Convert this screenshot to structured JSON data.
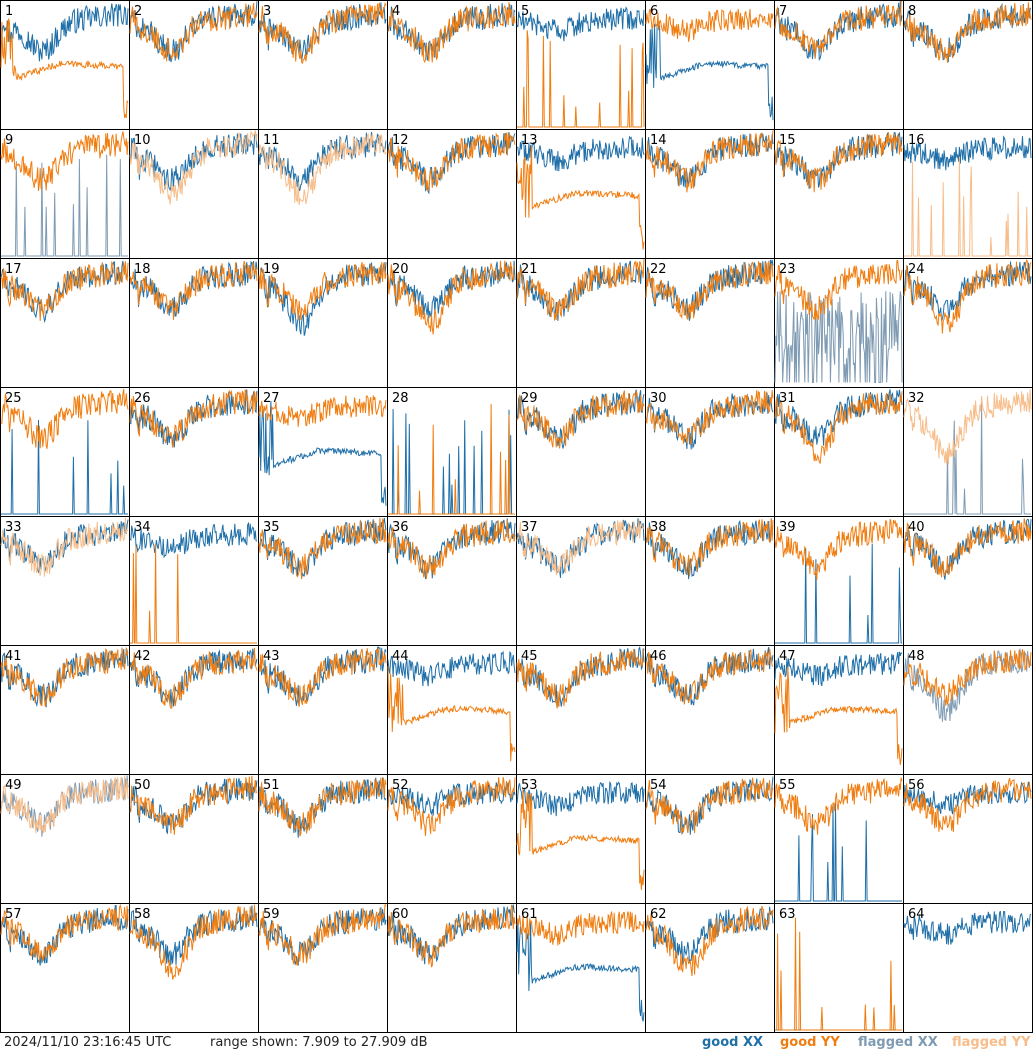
{
  "timestamp": "2024/11/10 23:16:45 UTC",
  "range_text": "range shown: 7.909 to 27.909 dB",
  "legend": {
    "good_xx": {
      "word": "good",
      "pol": "XX",
      "color": "#1f6fa8"
    },
    "good_yy": {
      "word": "good",
      "pol": "YY",
      "color": "#f07d10"
    },
    "flagged_xx": {
      "word": "flagged",
      "pol": "XX",
      "color": "#7f9bb3"
    },
    "flagged_yy": {
      "word": "flagged",
      "pol": "YY",
      "color": "#f7bd8a"
    }
  },
  "chart_data": {
    "type": "line",
    "ylim": [
      7.909,
      27.909
    ],
    "grid": {
      "rows": 8,
      "cols": 8
    },
    "series_names": [
      "good XX",
      "good YY",
      "flagged XX",
      "flagged YY"
    ],
    "panels": [
      {
        "label": "1",
        "xx": "good",
        "yy": "good",
        "xx_shape": "normal",
        "yy_shape": "smooth_low"
      },
      {
        "label": "2",
        "xx": "good",
        "yy": "good",
        "xx_shape": "normal",
        "yy_shape": "normal"
      },
      {
        "label": "3",
        "xx": "good",
        "yy": "good",
        "xx_shape": "normal",
        "yy_shape": "normal"
      },
      {
        "label": "4",
        "xx": "good",
        "yy": "good",
        "xx_shape": "normal",
        "yy_shape": "normal"
      },
      {
        "label": "5",
        "xx": "good",
        "yy": "good",
        "xx_shape": "high",
        "yy_shape": "spiky_zero"
      },
      {
        "label": "6",
        "xx": "good",
        "yy": "good",
        "xx_shape": "smooth_low",
        "yy_shape": "high"
      },
      {
        "label": "7",
        "xx": "good",
        "yy": "good",
        "xx_shape": "normal",
        "yy_shape": "normal"
      },
      {
        "label": "8",
        "xx": "good",
        "yy": "good",
        "xx_shape": "normal",
        "yy_shape": "normal"
      },
      {
        "label": "9",
        "xx": "flagged",
        "yy": "good",
        "xx_shape": "spiky_zero",
        "yy_shape": "normal"
      },
      {
        "label": "10",
        "xx": "good",
        "yy": "flagged",
        "xx_shape": "normal",
        "yy_shape": "deep"
      },
      {
        "label": "11",
        "xx": "good",
        "yy": "flagged",
        "xx_shape": "normal",
        "yy_shape": "deep"
      },
      {
        "label": "12",
        "xx": "good",
        "yy": "good",
        "xx_shape": "normal",
        "yy_shape": "normal"
      },
      {
        "label": "13",
        "xx": "good",
        "yy": "good",
        "xx_shape": "high",
        "yy_shape": "smooth_low"
      },
      {
        "label": "14",
        "xx": "good",
        "yy": "good",
        "xx_shape": "normal",
        "yy_shape": "normal"
      },
      {
        "label": "15",
        "xx": "good",
        "yy": "good",
        "xx_shape": "normal",
        "yy_shape": "normal"
      },
      {
        "label": "16",
        "xx": "good",
        "yy": "flagged",
        "xx_shape": "high",
        "yy_shape": "spiky_zero"
      },
      {
        "label": "17",
        "xx": "good",
        "yy": "good",
        "xx_shape": "normal",
        "yy_shape": "normal"
      },
      {
        "label": "18",
        "xx": "good",
        "yy": "good",
        "xx_shape": "normal",
        "yy_shape": "normal"
      },
      {
        "label": "19",
        "xx": "good",
        "yy": "good",
        "xx_shape": "deep",
        "yy_shape": "normal"
      },
      {
        "label": "20",
        "xx": "good",
        "yy": "good",
        "xx_shape": "normal",
        "yy_shape": "deep"
      },
      {
        "label": "21",
        "xx": "good",
        "yy": "good",
        "xx_shape": "normal",
        "yy_shape": "normal"
      },
      {
        "label": "22",
        "xx": "good",
        "yy": "good",
        "xx_shape": "normal",
        "yy_shape": "normal"
      },
      {
        "label": "23",
        "xx": "flagged",
        "yy": "good",
        "xx_shape": "noisy_low",
        "yy_shape": "normal"
      },
      {
        "label": "24",
        "xx": "good",
        "yy": "good",
        "xx_shape": "normal",
        "yy_shape": "deep"
      },
      {
        "label": "25",
        "xx": "good",
        "yy": "good",
        "xx_shape": "spiky_zero",
        "yy_shape": "normal"
      },
      {
        "label": "26",
        "xx": "good",
        "yy": "good",
        "xx_shape": "normal",
        "yy_shape": "normal"
      },
      {
        "label": "27",
        "xx": "good",
        "yy": "good",
        "xx_shape": "smooth_low",
        "yy_shape": "high"
      },
      {
        "label": "28",
        "xx": "good",
        "yy": "good",
        "xx_shape": "spiky_zero",
        "yy_shape": "spiky_zero"
      },
      {
        "label": "29",
        "xx": "good",
        "yy": "good",
        "xx_shape": "normal",
        "yy_shape": "normal"
      },
      {
        "label": "30",
        "xx": "good",
        "yy": "good",
        "xx_shape": "normal",
        "yy_shape": "normal"
      },
      {
        "label": "31",
        "xx": "good",
        "yy": "good",
        "xx_shape": "normal",
        "yy_shape": "deep"
      },
      {
        "label": "32",
        "xx": "flagged",
        "yy": "flagged",
        "xx_shape": "spiky_zero",
        "yy_shape": "deep"
      },
      {
        "label": "33",
        "xx": "good",
        "yy": "flagged",
        "xx_shape": "normal",
        "yy_shape": "normal"
      },
      {
        "label": "34",
        "xx": "good",
        "yy": "good",
        "xx_shape": "high",
        "yy_shape": "spiky_zero"
      },
      {
        "label": "35",
        "xx": "good",
        "yy": "good",
        "xx_shape": "normal",
        "yy_shape": "normal"
      },
      {
        "label": "36",
        "xx": "good",
        "yy": "good",
        "xx_shape": "normal",
        "yy_shape": "normal"
      },
      {
        "label": "37",
        "xx": "good",
        "yy": "flagged",
        "xx_shape": "normal",
        "yy_shape": "normal"
      },
      {
        "label": "38",
        "xx": "good",
        "yy": "good",
        "xx_shape": "normal",
        "yy_shape": "normal"
      },
      {
        "label": "39",
        "xx": "good",
        "yy": "good",
        "xx_shape": "spiky_zero",
        "yy_shape": "normal"
      },
      {
        "label": "40",
        "xx": "good",
        "yy": "good",
        "xx_shape": "normal",
        "yy_shape": "normal"
      },
      {
        "label": "41",
        "xx": "good",
        "yy": "good",
        "xx_shape": "normal",
        "yy_shape": "normal"
      },
      {
        "label": "42",
        "xx": "good",
        "yy": "good",
        "xx_shape": "normal",
        "yy_shape": "normal"
      },
      {
        "label": "43",
        "xx": "good",
        "yy": "good",
        "xx_shape": "normal",
        "yy_shape": "normal"
      },
      {
        "label": "44",
        "xx": "good",
        "yy": "good",
        "xx_shape": "high",
        "yy_shape": "smooth_low"
      },
      {
        "label": "45",
        "xx": "good",
        "yy": "good",
        "xx_shape": "normal",
        "yy_shape": "normal"
      },
      {
        "label": "46",
        "xx": "good",
        "yy": "good",
        "xx_shape": "normal",
        "yy_shape": "normal"
      },
      {
        "label": "47",
        "xx": "good",
        "yy": "good",
        "xx_shape": "high",
        "yy_shape": "smooth_low"
      },
      {
        "label": "48",
        "xx": "flagged",
        "yy": "good",
        "xx_shape": "deep",
        "yy_shape": "normal"
      },
      {
        "label": "49",
        "xx": "flagged",
        "yy": "flagged",
        "xx_shape": "normal",
        "yy_shape": "normal"
      },
      {
        "label": "50",
        "xx": "good",
        "yy": "good",
        "xx_shape": "normal",
        "yy_shape": "normal"
      },
      {
        "label": "51",
        "xx": "good",
        "yy": "good",
        "xx_shape": "normal",
        "yy_shape": "normal"
      },
      {
        "label": "52",
        "xx": "good",
        "yy": "good",
        "xx_shape": "high",
        "yy_shape": "normal"
      },
      {
        "label": "53",
        "xx": "good",
        "yy": "good",
        "xx_shape": "high",
        "yy_shape": "smooth_low"
      },
      {
        "label": "54",
        "xx": "good",
        "yy": "good",
        "xx_shape": "normal",
        "yy_shape": "normal"
      },
      {
        "label": "55",
        "xx": "good",
        "yy": "good",
        "xx_shape": "spiky_zero",
        "yy_shape": "normal"
      },
      {
        "label": "56",
        "xx": "good",
        "yy": "good",
        "xx_shape": "high",
        "yy_shape": "normal"
      },
      {
        "label": "57",
        "xx": "good",
        "yy": "good",
        "xx_shape": "normal",
        "yy_shape": "normal"
      },
      {
        "label": "58",
        "xx": "good",
        "yy": "good",
        "xx_shape": "normal",
        "yy_shape": "deep"
      },
      {
        "label": "59",
        "xx": "good",
        "yy": "good",
        "xx_shape": "normal",
        "yy_shape": "normal"
      },
      {
        "label": "60",
        "xx": "good",
        "yy": "good",
        "xx_shape": "normal",
        "yy_shape": "normal"
      },
      {
        "label": "61",
        "xx": "good",
        "yy": "good",
        "xx_shape": "smooth_low",
        "yy_shape": "high"
      },
      {
        "label": "62",
        "xx": "good",
        "yy": "good",
        "xx_shape": "normal",
        "yy_shape": "deep"
      },
      {
        "label": "63",
        "xx": "good",
        "yy": "good",
        "xx_shape": "flat_zero",
        "yy_shape": "spiky_zero"
      },
      {
        "label": "64",
        "xx": "good",
        "yy": "good",
        "xx_shape": "high",
        "yy_shape": "none"
      }
    ]
  }
}
